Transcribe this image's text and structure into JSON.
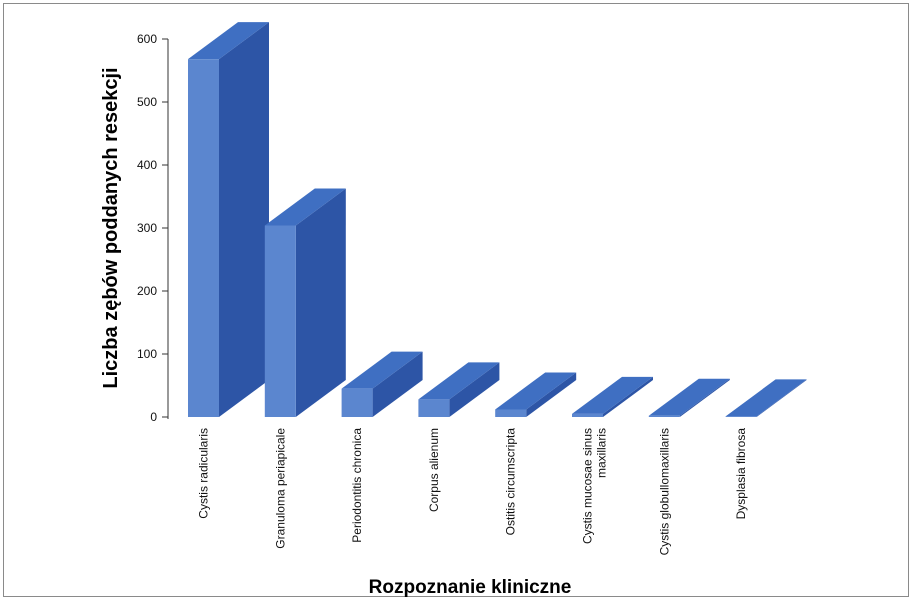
{
  "chart_data": {
    "type": "bar",
    "title": "",
    "xlabel": "Rozpoznanie kliniczne",
    "ylabel": "Liczba zębów poddanych resekcji",
    "ylim": [
      0,
      600
    ],
    "yticks": [
      0,
      100,
      200,
      300,
      400,
      500,
      600
    ],
    "categories": [
      [
        "Cystis radicularis"
      ],
      [
        "Granuloma periapicale"
      ],
      [
        "Periodontitis chronica"
      ],
      [
        "Corpus alienum"
      ],
      [
        "Ostitis circumscripta"
      ],
      [
        "Cystis mucosae sinus",
        "maxillaris"
      ],
      [
        "Cystis globullomaxillaris"
      ],
      [
        "Dysplasia fibrosa"
      ]
    ],
    "values": [
      568,
      304,
      45,
      28,
      12,
      5,
      2,
      1
    ],
    "grid": false,
    "legend": "none",
    "colors": {
      "front": "#5b86cf",
      "side": "#2d55a6",
      "top": "#3f6fc2"
    }
  }
}
